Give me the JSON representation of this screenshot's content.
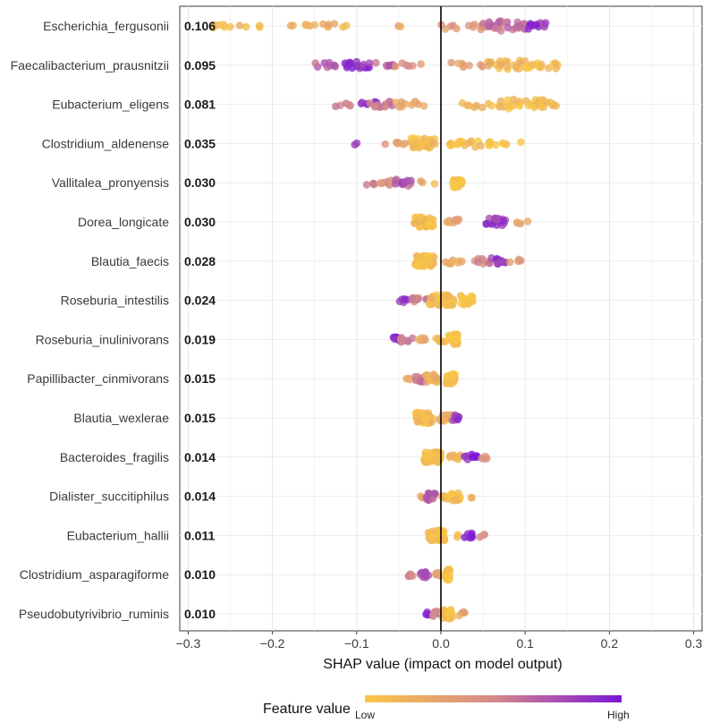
{
  "chart_data": {
    "type": "scatter",
    "subtype": "shap-beeswarm",
    "xlabel": "SHAP value (impact on model output)",
    "xlim": [
      -0.31,
      0.31
    ],
    "xticks": [
      -0.3,
      -0.2,
      -0.1,
      0.0,
      0.1,
      0.2,
      0.3
    ],
    "xtick_labels": [
      "−0.3",
      "−0.2",
      "−0.1",
      "0.0",
      "0.1",
      "0.2",
      "0.3"
    ],
    "legend": {
      "title": "Feature value",
      "low_label": "Low",
      "high_label": "High",
      "low_color": "#f9c646",
      "high_color": "#7b16d8",
      "position": "bottom"
    },
    "features": [
      {
        "name": "Escherichia_fergusonii",
        "mean_abs_shap": "0.106",
        "range": [
          -0.27,
          0.125
        ],
        "clusters": [
          [
            -0.27,
            0.02,
            6,
            0.05
          ],
          [
            -0.23,
            0.02,
            4,
            0.1
          ],
          [
            -0.17,
            0.015,
            5,
            0.15
          ],
          [
            -0.13,
            0.02,
            8,
            0.2
          ],
          [
            -0.05,
            0.01,
            2,
            0.3
          ],
          [
            0.03,
            0.03,
            14,
            0.4
          ],
          [
            0.08,
            0.03,
            24,
            0.6
          ],
          [
            0.11,
            0.015,
            12,
            0.85
          ]
        ]
      },
      {
        "name": "Faecalibacterium_prausnitzii",
        "mean_abs_shap": "0.095",
        "range": [
          -0.155,
          0.148
        ],
        "clusters": [
          [
            -0.14,
            0.015,
            8,
            0.65
          ],
          [
            -0.1,
            0.015,
            16,
            0.9
          ],
          [
            -0.07,
            0.015,
            8,
            0.65
          ],
          [
            -0.045,
            0.012,
            5,
            0.4
          ],
          [
            -0.02,
            0.005,
            1,
            0.2
          ],
          [
            0.03,
            0.02,
            8,
            0.3
          ],
          [
            0.08,
            0.025,
            22,
            0.15
          ],
          [
            0.12,
            0.02,
            14,
            0.05
          ]
        ]
      },
      {
        "name": "Eubacterium_eligens",
        "mean_abs_shap": "0.081",
        "range": [
          -0.125,
          0.143
        ],
        "clusters": [
          [
            -0.115,
            0.012,
            5,
            0.6
          ],
          [
            -0.085,
            0.01,
            8,
            0.9
          ],
          [
            -0.07,
            0.015,
            14,
            0.55
          ],
          [
            -0.04,
            0.02,
            10,
            0.25
          ],
          [
            0.05,
            0.025,
            12,
            0.1
          ],
          [
            0.1,
            0.025,
            24,
            0.05
          ],
          [
            0.13,
            0.008,
            6,
            0.05
          ]
        ]
      },
      {
        "name": "Clostridium_aldenense",
        "mean_abs_shap": "0.035",
        "range": [
          -0.105,
          0.095
        ],
        "clusters": [
          [
            -0.1,
            0.005,
            2,
            0.9
          ],
          [
            -0.065,
            0.005,
            1,
            0.5
          ],
          [
            -0.045,
            0.012,
            6,
            0.3
          ],
          [
            -0.02,
            0.015,
            28,
            0.1
          ],
          [
            0.03,
            0.02,
            16,
            0.05
          ],
          [
            0.07,
            0.015,
            8,
            0.05
          ],
          [
            0.095,
            0.003,
            1,
            0.1
          ]
        ]
      },
      {
        "name": "Vallitalea_pronyensis",
        "mean_abs_shap": "0.030",
        "range": [
          -0.09,
          0.025
        ],
        "clusters": [
          [
            -0.085,
            0.006,
            4,
            0.5
          ],
          [
            -0.065,
            0.01,
            8,
            0.4
          ],
          [
            -0.045,
            0.01,
            14,
            0.7
          ],
          [
            -0.025,
            0.005,
            2,
            0.3
          ],
          [
            -0.01,
            0.003,
            1,
            0.1
          ],
          [
            0.02,
            0.006,
            24,
            0.02
          ]
        ]
      },
      {
        "name": "Dorea_longicate",
        "mean_abs_shap": "0.030",
        "range": [
          -0.04,
          0.12
        ],
        "clusters": [
          [
            -0.02,
            0.012,
            40,
            0.05
          ],
          [
            0.015,
            0.008,
            8,
            0.3
          ],
          [
            0.065,
            0.012,
            16,
            0.85
          ],
          [
            0.1,
            0.01,
            4,
            0.35
          ]
        ]
      },
      {
        "name": "Blautia_faecis",
        "mean_abs_shap": "0.028",
        "range": [
          -0.04,
          0.1
        ],
        "clusters": [
          [
            -0.02,
            0.012,
            46,
            0.05
          ],
          [
            0.015,
            0.01,
            10,
            0.2
          ],
          [
            0.05,
            0.012,
            8,
            0.5
          ],
          [
            0.07,
            0.01,
            12,
            0.85
          ],
          [
            0.09,
            0.008,
            4,
            0.35
          ]
        ]
      },
      {
        "name": "Roseburia_intestilis",
        "mean_abs_shap": "0.024",
        "range": [
          -0.052,
          0.04
        ],
        "clusters": [
          [
            -0.045,
            0.006,
            5,
            0.85
          ],
          [
            -0.025,
            0.01,
            10,
            0.5
          ],
          [
            0.0,
            0.015,
            40,
            0.1
          ],
          [
            0.03,
            0.008,
            20,
            0.05
          ]
        ]
      },
      {
        "name": "Roseburia_inulinivorans",
        "mean_abs_shap": "0.019",
        "range": [
          -0.06,
          0.025
        ],
        "clusters": [
          [
            -0.055,
            0.005,
            6,
            0.95
          ],
          [
            -0.04,
            0.008,
            8,
            0.55
          ],
          [
            -0.02,
            0.008,
            6,
            0.3
          ],
          [
            0.0,
            0.006,
            6,
            0.1
          ],
          [
            0.015,
            0.006,
            30,
            0.02
          ]
        ]
      },
      {
        "name": "Papillibacter_cinmivorans",
        "mean_abs_shap": "0.015",
        "range": [
          -0.045,
          0.022
        ],
        "clusters": [
          [
            -0.04,
            0.005,
            3,
            0.3
          ],
          [
            -0.025,
            0.006,
            12,
            0.6
          ],
          [
            -0.01,
            0.008,
            20,
            0.2
          ],
          [
            0.012,
            0.006,
            24,
            0.03
          ]
        ]
      },
      {
        "name": "Blautia_wexlerae",
        "mean_abs_shap": "0.015",
        "range": [
          -0.032,
          0.025
        ],
        "clusters": [
          [
            -0.02,
            0.01,
            40,
            0.08
          ],
          [
            0.005,
            0.008,
            12,
            0.2
          ],
          [
            0.018,
            0.004,
            10,
            0.85
          ]
        ]
      },
      {
        "name": "Bacteroides_fragilis",
        "mean_abs_shap": "0.014",
        "range": [
          -0.028,
          0.058
        ],
        "clusters": [
          [
            -0.01,
            0.01,
            46,
            0.05
          ],
          [
            0.015,
            0.008,
            8,
            0.15
          ],
          [
            0.035,
            0.008,
            8,
            0.9
          ],
          [
            0.05,
            0.005,
            4,
            0.4
          ]
        ]
      },
      {
        "name": "Dialister_succitiphilus",
        "mean_abs_shap": "0.014",
        "range": [
          -0.03,
          0.04
        ],
        "clusters": [
          [
            -0.025,
            0.004,
            3,
            0.3
          ],
          [
            -0.012,
            0.006,
            16,
            0.7
          ],
          [
            0.0,
            0.006,
            6,
            0.2
          ],
          [
            0.015,
            0.008,
            20,
            0.05
          ],
          [
            0.035,
            0.004,
            2,
            0.1
          ]
        ]
      },
      {
        "name": "Eubacterium_hallii",
        "mean_abs_shap": "0.011",
        "range": [
          -0.025,
          0.052
        ],
        "clusters": [
          [
            -0.005,
            0.01,
            46,
            0.05
          ],
          [
            0.02,
            0.004,
            2,
            0.2
          ],
          [
            0.032,
            0.005,
            8,
            0.95
          ],
          [
            0.048,
            0.004,
            3,
            0.5
          ]
        ]
      },
      {
        "name": "Clostridium_asparagiforme",
        "mean_abs_shap": "0.010",
        "range": [
          -0.04,
          0.012
        ],
        "clusters": [
          [
            -0.035,
            0.005,
            5,
            0.45
          ],
          [
            -0.02,
            0.006,
            10,
            0.75
          ],
          [
            -0.005,
            0.006,
            4,
            0.35
          ],
          [
            0.008,
            0.003,
            30,
            0.01
          ]
        ]
      },
      {
        "name": "Pseudobutyrivibrio_ruminis",
        "mean_abs_shap": "0.010",
        "range": [
          -0.018,
          0.03
        ],
        "clusters": [
          [
            -0.015,
            0.004,
            3,
            0.95
          ],
          [
            -0.005,
            0.006,
            10,
            0.55
          ],
          [
            0.008,
            0.006,
            24,
            0.05
          ],
          [
            0.025,
            0.004,
            4,
            0.3
          ]
        ]
      }
    ]
  }
}
